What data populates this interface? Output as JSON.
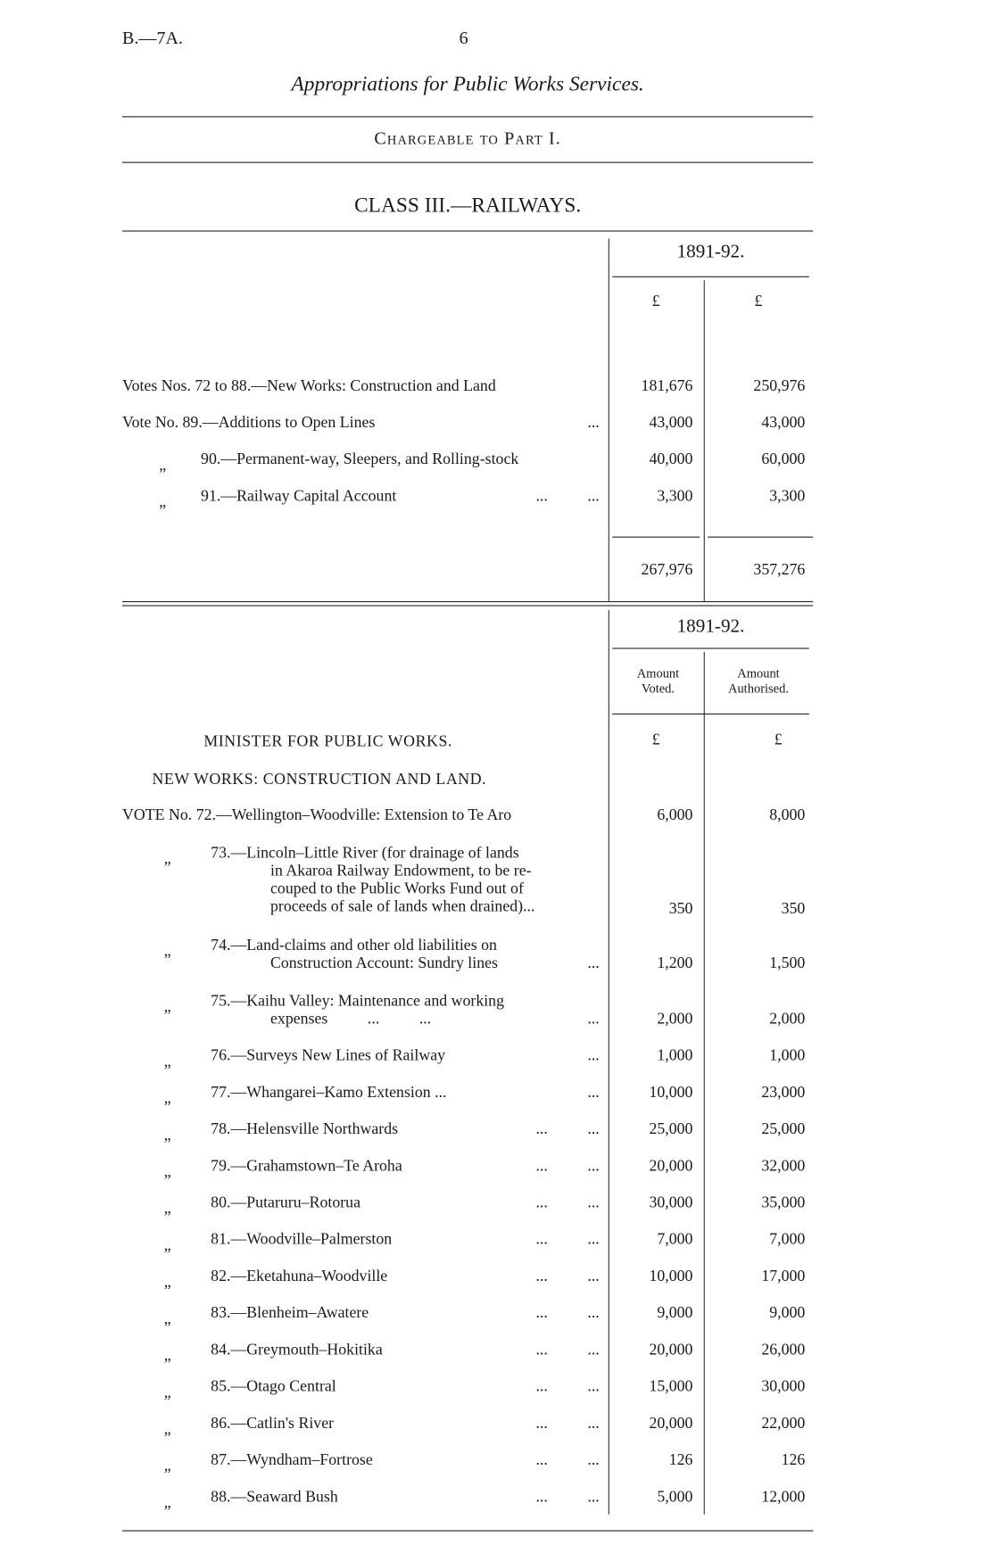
{
  "header": {
    "ref": "B.—7A.",
    "page": "6"
  },
  "title": "Appropriations for Public Works Services.",
  "chargeable": "Chargeable to Part I.",
  "class_title": "CLASS III.—RAILWAYS.",
  "summary": {
    "year": "1891-92.",
    "currency": [
      "£",
      "£"
    ],
    "rows": [
      {
        "ditto": "",
        "label": "Votes Nos. 72 to 88.—New Works: Construction and Land",
        "dots": "",
        "voted": "181,676",
        "authorised": "250,976"
      },
      {
        "ditto": "",
        "label": "Vote No. 89.—Additions to Open Lines",
        "dots": "...",
        "voted": "43,000",
        "authorised": "43,000"
      },
      {
        "ditto": "„",
        "label": "90.—Permanent-way, Sleepers, and Rolling-stock",
        "dots": "",
        "voted": "40,000",
        "authorised": "60,000"
      },
      {
        "ditto": "„",
        "label": "91.—Railway Capital Account",
        "dots": "...          ...",
        "voted": "3,300",
        "authorised": "3,300"
      }
    ],
    "totals": {
      "voted": "267,976",
      "authorised": "357,276"
    }
  },
  "detail": {
    "year": "1891-92.",
    "col_voted": "Amount Voted.",
    "col_authorised": "Amount Authorised.",
    "currency": [
      "£",
      "£"
    ],
    "minister": "MINISTER FOR PUBLIC WORKS.",
    "section": "NEW WORKS: CONSTRUCTION AND LAND.",
    "rows": [
      {
        "ditto": "",
        "label": "VOTE No. 72.—Wellington–Woodville: Extension to Te Aro",
        "dots": "",
        "voted": "6,000",
        "authorised": "8,000"
      },
      {
        "ditto": "„",
        "label": "73.—Lincoln–Little River (for drainage of lands",
        "cont": [
          "in Akaroa Railway Endowment, to be re-",
          "couped to the Public Works Fund out of",
          "proceeds of sale of lands when drained)..."
        ],
        "dots": "",
        "voted": "350",
        "authorised": "350"
      },
      {
        "ditto": "„",
        "label": "74.—Land-claims and other old liabilities on",
        "cont": [
          "Construction Account: Sundry lines"
        ],
        "dots": "...",
        "voted": "1,200",
        "authorised": "1,500"
      },
      {
        "ditto": "„",
        "label": "75.—Kaihu Valley: Maintenance and working",
        "cont": [
          "expenses          ...          ..."
        ],
        "dots": "...",
        "voted": "2,000",
        "authorised": "2,000"
      },
      {
        "ditto": "„",
        "label": "76.—Surveys New Lines of Railway",
        "dots": "...",
        "voted": "1,000",
        "authorised": "1,000"
      },
      {
        "ditto": "„",
        "label": "77.—Whangarei–Kamo Extension ...",
        "dots": "...",
        "voted": "10,000",
        "authorised": "23,000"
      },
      {
        "ditto": "„",
        "label": "78.—Helensville Northwards",
        "dots": "...          ...",
        "voted": "25,000",
        "authorised": "25,000"
      },
      {
        "ditto": "„",
        "label": "79.—Grahamstown–Te Aroha",
        "dots": "...          ...",
        "voted": "20,000",
        "authorised": "32,000"
      },
      {
        "ditto": "„",
        "label": "80.—Putaruru–Rotorua",
        "dots": "...          ...",
        "voted": "30,000",
        "authorised": "35,000"
      },
      {
        "ditto": "„",
        "label": "81.—Woodville–Palmerston",
        "dots": "...          ...",
        "voted": "7,000",
        "authorised": "7,000"
      },
      {
        "ditto": "„",
        "label": "82.—Eketahuna–Woodville",
        "dots": "...          ...",
        "voted": "10,000",
        "authorised": "17,000"
      },
      {
        "ditto": "„",
        "label": "83.—Blenheim–Awatere",
        "dots": "...          ...",
        "voted": "9,000",
        "authorised": "9,000"
      },
      {
        "ditto": "„",
        "label": "84.—Greymouth–Hokitika",
        "dots": "...          ...",
        "voted": "20,000",
        "authorised": "26,000"
      },
      {
        "ditto": "„",
        "label": "85.—Otago Central",
        "dots": "...          ...",
        "voted": "15,000",
        "authorised": "30,000"
      },
      {
        "ditto": "„",
        "label": "86.—Catlin's River",
        "dots": "...          ...",
        "voted": "20,000",
        "authorised": "22,000"
      },
      {
        "ditto": "„",
        "label": "87.—Wyndham–Fortrose",
        "dots": "...          ...",
        "voted": "126",
        "authorised": "126"
      },
      {
        "ditto": "„",
        "label": "88.—Seaward Bush",
        "dots": "...          ...",
        "voted": "5,000",
        "authorised": "12,000"
      }
    ]
  }
}
